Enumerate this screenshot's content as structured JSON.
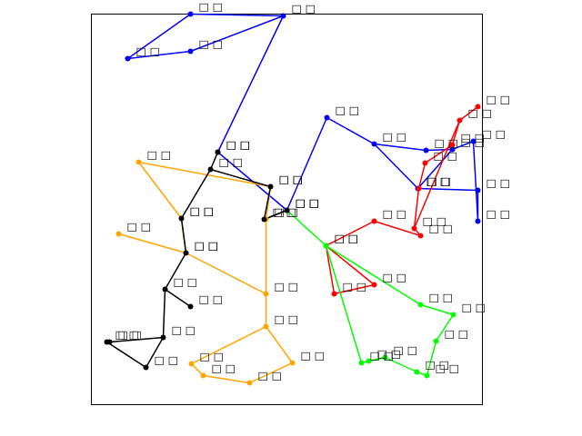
{
  "chart_data": {
    "type": "scatter",
    "title": "",
    "xlabel": "",
    "ylabel": "",
    "xlim": [
      0,
      430
    ],
    "ylim": [
      0,
      430
    ],
    "grid": false,
    "legend": "none",
    "node_label": "□ □",
    "series": [
      {
        "color": "#0000ff",
        "points": [
          [
            109,
            430
          ],
          [
            211,
            428
          ],
          [
            40,
            381
          ],
          [
            109,
            389
          ],
          [
            139,
            278
          ],
          [
            259,
            316
          ],
          [
            311,
            287
          ],
          [
            368,
            280
          ],
          [
            397,
            281
          ],
          [
            420,
            290
          ],
          [
            359,
            238
          ],
          [
            425,
            236
          ],
          [
            425,
            202
          ],
          [
            215,
            214
          ]
        ],
        "edges": [
          [
            0,
            2
          ],
          [
            0,
            1
          ],
          [
            1,
            4
          ],
          [
            1,
            3
          ],
          [
            3,
            2
          ],
          [
            4,
            13
          ],
          [
            13,
            5
          ],
          [
            5,
            6
          ],
          [
            6,
            7
          ],
          [
            7,
            8
          ],
          [
            8,
            9
          ],
          [
            9,
            12
          ],
          [
            12,
            11
          ],
          [
            11,
            10
          ],
          [
            10,
            6
          ],
          [
            10,
            8
          ]
        ]
      },
      {
        "color": "#ff0000",
        "points": [
          [
            425,
            328
          ],
          [
            405,
            313
          ],
          [
            397,
            286
          ],
          [
            367,
            266
          ],
          [
            360,
            238
          ],
          [
            362,
            186
          ],
          [
            355,
            194
          ],
          [
            311,
            202
          ],
          [
            258,
            175
          ],
          [
            267,
            122
          ],
          [
            311,
            132
          ]
        ],
        "edges": [
          [
            0,
            1
          ],
          [
            1,
            2
          ],
          [
            2,
            3
          ],
          [
            3,
            4
          ],
          [
            4,
            6
          ],
          [
            6,
            5
          ],
          [
            5,
            7
          ],
          [
            7,
            8
          ],
          [
            8,
            9
          ],
          [
            9,
            10
          ],
          [
            10,
            8
          ],
          [
            1,
            6
          ]
        ]
      },
      {
        "color": "#00ff00",
        "points": [
          [
            215,
            214
          ],
          [
            258,
            175
          ],
          [
            362,
            110
          ],
          [
            398,
            99
          ],
          [
            379,
            70
          ],
          [
            369,
            32
          ],
          [
            358,
            36
          ],
          [
            323,
            52
          ],
          [
            305,
            48
          ],
          [
            297,
            46
          ]
        ],
        "edges": [
          [
            0,
            1
          ],
          [
            1,
            2
          ],
          [
            2,
            3
          ],
          [
            3,
            4
          ],
          [
            4,
            5
          ],
          [
            5,
            6
          ],
          [
            6,
            7
          ],
          [
            7,
            8
          ],
          [
            8,
            9
          ],
          [
            9,
            1
          ]
        ]
      },
      {
        "color": "#ffa500",
        "points": [
          [
            52,
            267
          ],
          [
            99,
            205
          ],
          [
            30,
            188
          ],
          [
            104,
            167
          ],
          [
            192,
            122
          ],
          [
            192,
            86
          ],
          [
            221,
            46
          ],
          [
            174,
            24
          ],
          [
            123,
            32
          ],
          [
            110,
            45
          ],
          [
            197,
            240
          ],
          [
            192,
            204
          ]
        ],
        "edges": [
          [
            0,
            10
          ],
          [
            10,
            11
          ],
          [
            11,
            4
          ],
          [
            4,
            5
          ],
          [
            5,
            9
          ],
          [
            9,
            8
          ],
          [
            8,
            7
          ],
          [
            7,
            6
          ],
          [
            6,
            5
          ],
          [
            3,
            4
          ],
          [
            2,
            3
          ],
          [
            1,
            3
          ],
          [
            1,
            0
          ]
        ]
      },
      {
        "color": "#000000",
        "points": [
          [
            139,
            278
          ],
          [
            131,
            259
          ],
          [
            197,
            240
          ],
          [
            190,
            204
          ],
          [
            215,
            214
          ],
          [
            99,
            205
          ],
          [
            104,
            167
          ],
          [
            81,
            127
          ],
          [
            109,
            108
          ],
          [
            79,
            74
          ],
          [
            20,
            69
          ],
          [
            17,
            69
          ],
          [
            60,
            41
          ]
        ],
        "edges": [
          [
            0,
            1
          ],
          [
            1,
            2
          ],
          [
            2,
            3
          ],
          [
            3,
            4
          ],
          [
            1,
            5
          ],
          [
            5,
            6
          ],
          [
            6,
            7
          ],
          [
            7,
            8
          ],
          [
            7,
            9
          ],
          [
            9,
            10
          ],
          [
            10,
            11
          ],
          [
            11,
            12
          ],
          [
            12,
            9
          ],
          [
            4,
            3
          ]
        ]
      }
    ]
  }
}
